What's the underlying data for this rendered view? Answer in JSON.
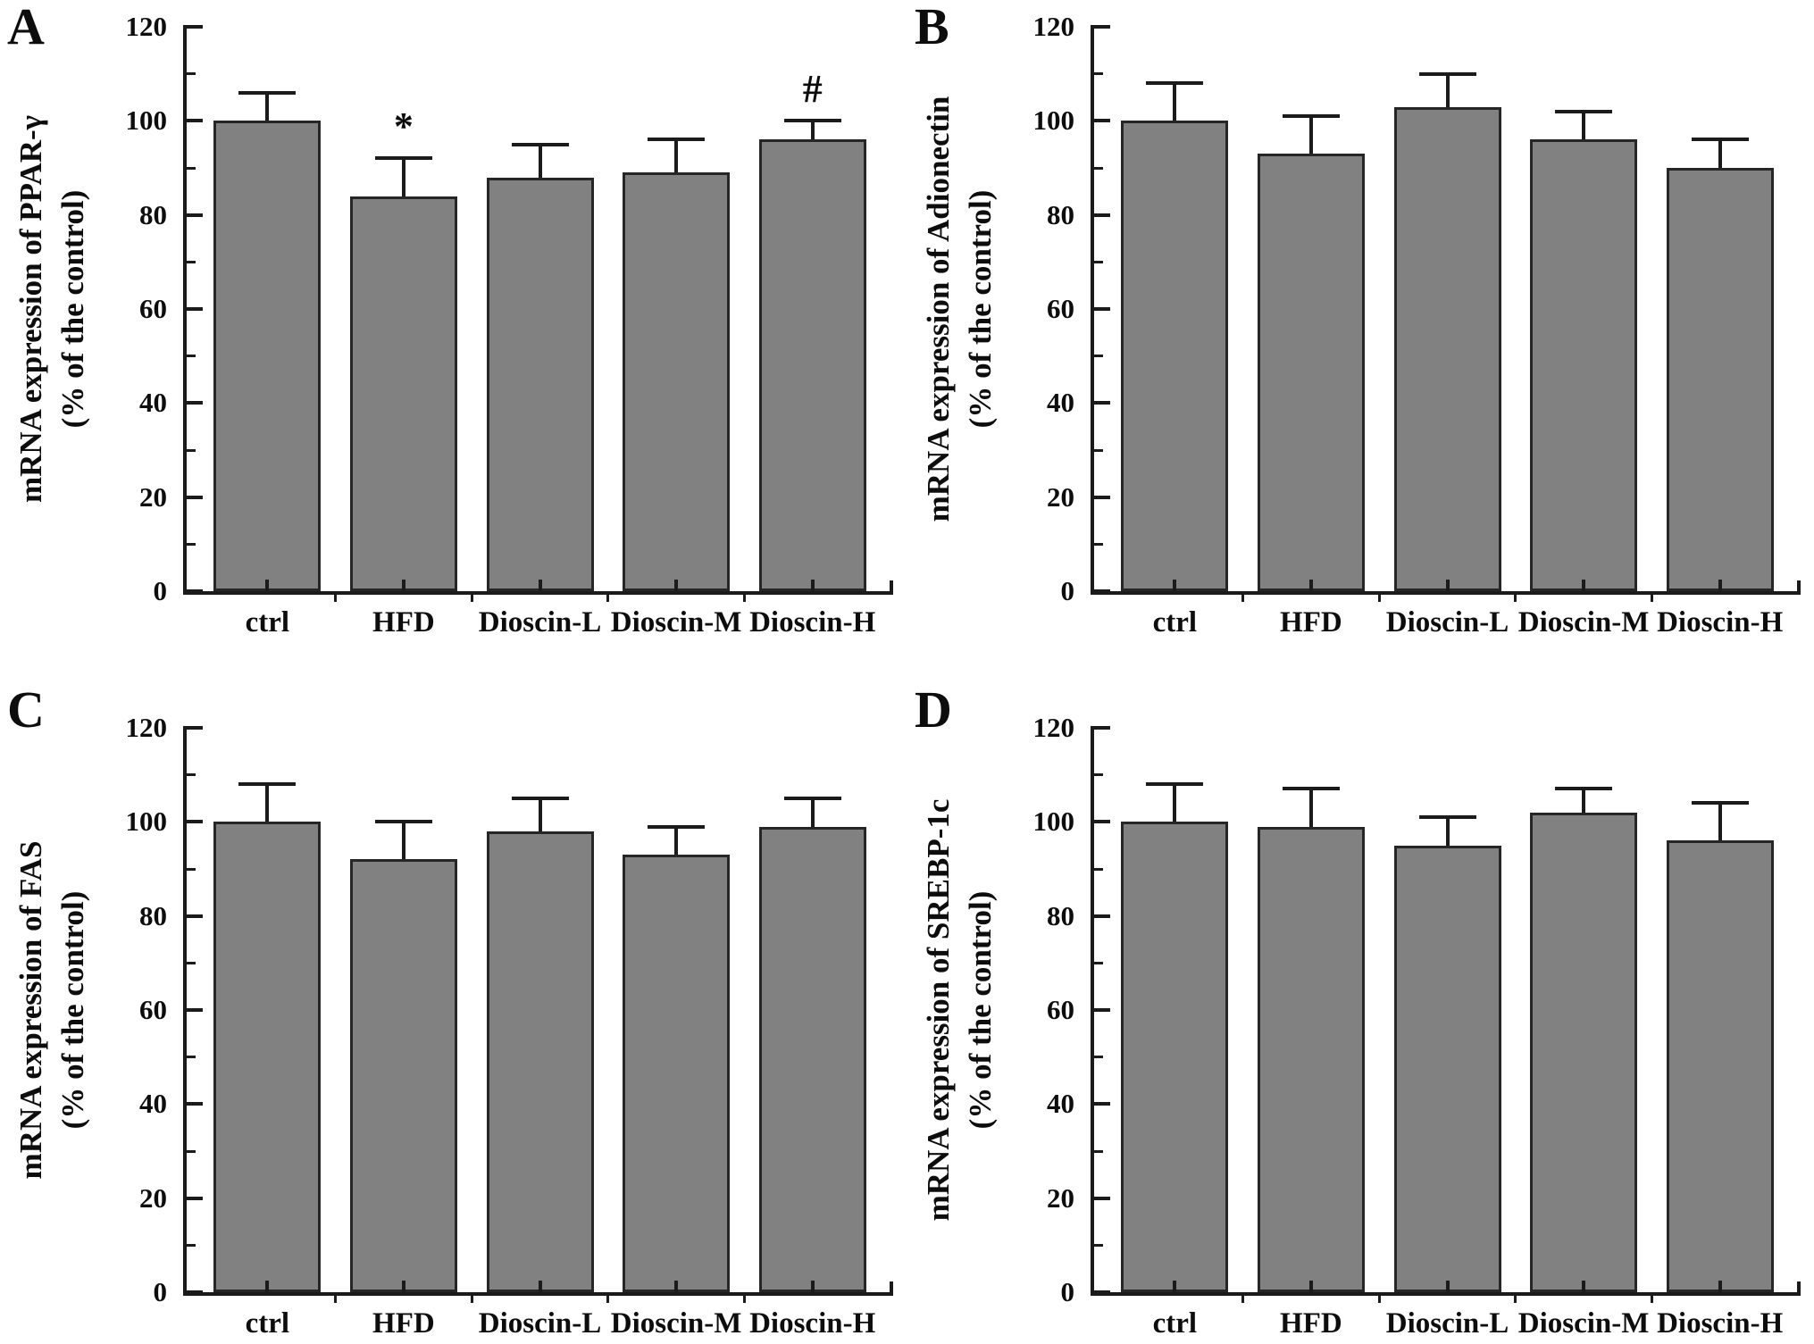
{
  "styles": {
    "bar_fill": "#818181",
    "bar_border": "#262626",
    "axis_color": "#1b1b1b",
    "text_color": "#0d0d0d"
  },
  "chart_data": [
    {
      "type": "bar",
      "panel_label": "A",
      "ylabel_line1": "mRNA expression of PPAR-γ",
      "ylabel_line2": "(% of the control)",
      "categories": [
        "ctrl",
        "HFD",
        "Dioscin-L",
        "Dioscin-M",
        "Dioscin-H"
      ],
      "values": [
        100,
        84,
        88,
        89,
        96
      ],
      "errors": [
        6,
        8,
        7,
        7,
        4
      ],
      "annotations": [
        "",
        "*",
        "",
        "",
        "#"
      ],
      "yticks": [
        0,
        20,
        40,
        60,
        80,
        100,
        120
      ],
      "minor_yticks": [
        10,
        30,
        50,
        70,
        90,
        110
      ],
      "ylim": [
        0,
        120
      ],
      "grid": false,
      "legend": false
    },
    {
      "type": "bar",
      "panel_label": "B",
      "ylabel_line1": "mRNA expression of Adionectin",
      "ylabel_line2": "(% of the control)",
      "categories": [
        "ctrl",
        "HFD",
        "Dioscin-L",
        "Dioscin-M",
        "Dioscin-H"
      ],
      "values": [
        100,
        93,
        103,
        96,
        90
      ],
      "errors": [
        8,
        8,
        7,
        6,
        6
      ],
      "annotations": [
        "",
        "",
        "",
        "",
        ""
      ],
      "yticks": [
        0,
        20,
        40,
        60,
        80,
        100,
        120
      ],
      "minor_yticks": [
        10,
        30,
        50,
        70,
        90,
        110
      ],
      "ylim": [
        0,
        120
      ],
      "grid": false,
      "legend": false
    },
    {
      "type": "bar",
      "panel_label": "C",
      "ylabel_line1": "mRNA expression of FAS",
      "ylabel_line2": "(% of the control)",
      "categories": [
        "ctrl",
        "HFD",
        "Dioscin-L",
        "Dioscin-M",
        "Dioscin-H"
      ],
      "values": [
        100,
        92,
        98,
        93,
        99
      ],
      "errors": [
        8,
        8,
        7,
        6,
        6
      ],
      "annotations": [
        "",
        "",
        "",
        "",
        ""
      ],
      "yticks": [
        0,
        20,
        40,
        60,
        80,
        100,
        120
      ],
      "minor_yticks": [
        10,
        30,
        50,
        70,
        90,
        110
      ],
      "ylim": [
        0,
        120
      ],
      "grid": false,
      "legend": false
    },
    {
      "type": "bar",
      "panel_label": "D",
      "ylabel_line1": "mRNA expression of SREBP-1c",
      "ylabel_line2": "(% of the control)",
      "categories": [
        "ctrl",
        "HFD",
        "Dioscin-L",
        "Dioscin-M",
        "Dioscin-H"
      ],
      "values": [
        100,
        99,
        95,
        102,
        96
      ],
      "errors": [
        8,
        8,
        6,
        5,
        8
      ],
      "annotations": [
        "",
        "",
        "",
        "",
        ""
      ],
      "yticks": [
        0,
        20,
        40,
        60,
        80,
        100,
        120
      ],
      "minor_yticks": [
        10,
        30,
        50,
        70,
        90,
        110
      ],
      "ylim": [
        0,
        120
      ],
      "grid": false,
      "legend": false
    }
  ]
}
